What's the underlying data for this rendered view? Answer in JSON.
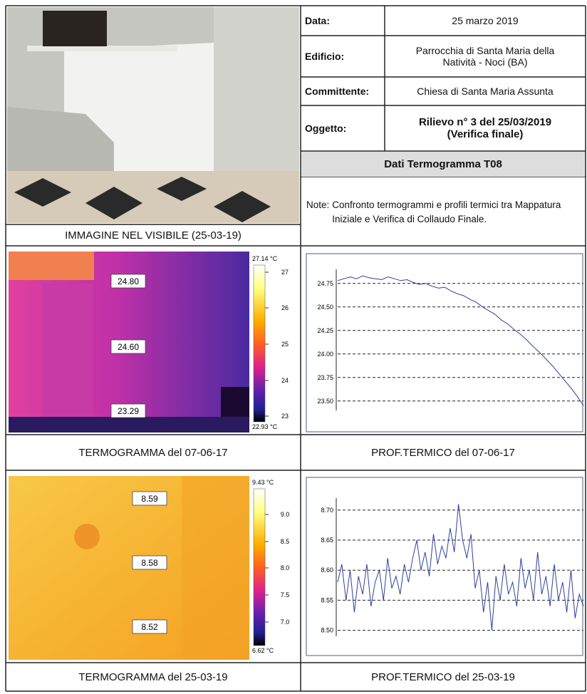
{
  "header": {
    "fields": [
      {
        "label": "Data:",
        "value": "25 marzo 2019"
      },
      {
        "label": "Edificio:",
        "value": "Parrocchia di Santa Maria della Natività - Noci (BA)"
      },
      {
        "label": "Committente:",
        "value": "Chiesa di Santa Maria Assunta"
      },
      {
        "label": "Oggetto:",
        "value": "Rilievo n° 3 del 25/03/2019 (Verifica finale)"
      }
    ],
    "section_title": "Dati Termogramma T08",
    "note_label": "Note:",
    "note": "Confronto termogrammi e profili termici tra Mappatura Iniziale e Verifica di Collaudo Finale."
  },
  "photo_caption": "IMMAGINE NEL VISIBILE (25-03-19)",
  "rows": [
    {
      "thermogram": {
        "caption": "TERMOGRAMMA del 07-06-17",
        "spots": [
          "24.80",
          "24.60",
          "23.29"
        ],
        "scale_max": "27.14 °C",
        "scale_ticks": [
          "27",
          "26",
          "25",
          "24",
          "23"
        ],
        "scale_min": "22.93 °C"
      },
      "profile": {
        "caption": "PROF.TERMICO del 07-06-17",
        "chart_data": {
          "type": "line",
          "color": "#2b3fa0",
          "grid": true,
          "ylim": [
            23.4,
            24.9
          ],
          "yticks": [
            24.75,
            {
              "value": 24.5,
              "label": "24.50"
            },
            24.25,
            {
              "value": 24,
              "label": "24.00"
            },
            23.75,
            {
              "value": 23.5,
              "label": "23.50"
            }
          ],
          "values": [
            24.78,
            24.8,
            24.82,
            24.8,
            24.83,
            24.81,
            24.8,
            24.79,
            24.82,
            24.8,
            24.78,
            24.79,
            24.76,
            24.74,
            24.75,
            24.72,
            24.7,
            24.71,
            24.67,
            24.64,
            24.62,
            24.58,
            24.55,
            24.5,
            24.46,
            24.42,
            24.36,
            24.32,
            24.26,
            24.21,
            24.15,
            24.08,
            24.02,
            23.95,
            23.88,
            23.8,
            23.72,
            23.64,
            23.55,
            23.45
          ]
        }
      }
    },
    {
      "thermogram": {
        "caption": "TERMOGRAMMA del 25-03-19",
        "spots": [
          "8.59",
          "8.58",
          "8.52"
        ],
        "scale_max": "9.43 °C",
        "scale_ticks": [
          "9.0",
          "8.5",
          "8.0",
          "7.5",
          "7.0"
        ],
        "scale_min": "6.62 °C"
      },
      "profile": {
        "caption": "PROF.TERMICO del 25-03-19",
        "chart_data": {
          "type": "line",
          "color": "#2b3fa0",
          "grid": true,
          "ylim": [
            8.49,
            8.72
          ],
          "yticks": [
            {
              "value": 8.7,
              "label": "8.70"
            },
            8.65,
            {
              "value": 8.6,
              "label": "8.60"
            },
            8.55,
            {
              "value": 8.5,
              "label": "8.50"
            }
          ],
          "values": [
            8.58,
            8.61,
            8.55,
            8.6,
            8.53,
            8.59,
            8.56,
            8.61,
            8.54,
            8.58,
            8.6,
            8.55,
            8.62,
            8.57,
            8.59,
            8.56,
            8.61,
            8.58,
            8.62,
            8.65,
            8.6,
            8.63,
            8.59,
            8.66,
            8.61,
            8.64,
            8.62,
            8.67,
            8.63,
            8.71,
            8.65,
            8.62,
            8.66,
            8.57,
            8.6,
            8.53,
            8.58,
            8.5,
            8.59,
            8.55,
            8.61,
            8.56,
            8.58,
            8.54,
            8.62,
            8.57,
            8.6,
            8.55,
            8.63,
            8.56,
            8.59,
            8.54,
            8.61,
            8.55,
            8.58,
            8.53,
            8.6,
            8.52,
            8.56,
            8.54
          ]
        }
      }
    }
  ]
}
